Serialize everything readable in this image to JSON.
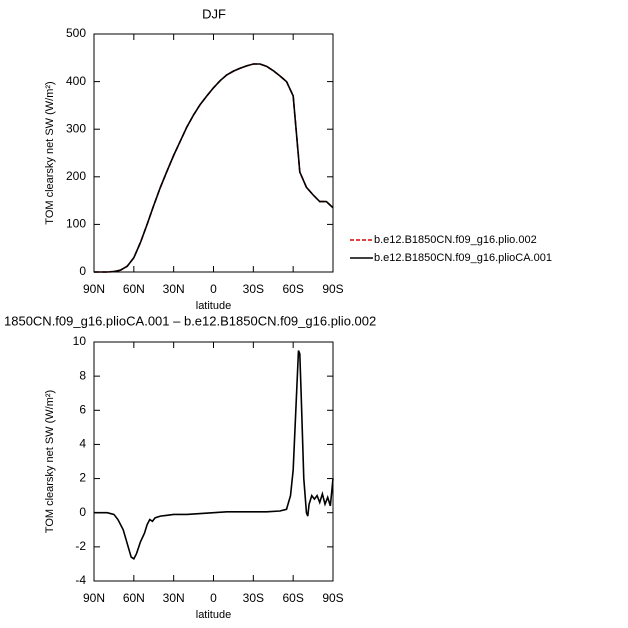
{
  "chart_data": [
    {
      "type": "line",
      "title": "DJF",
      "xlabel": "latitude",
      "ylabel": "TOM clearsky net SW (W/m²)",
      "x": [
        90,
        85,
        80,
        75,
        70,
        65,
        60,
        55,
        50,
        45,
        40,
        35,
        30,
        25,
        20,
        15,
        10,
        5,
        0,
        -5,
        -10,
        -15,
        -20,
        -25,
        -30,
        -35,
        -40,
        -45,
        -50,
        -55,
        -60,
        -65,
        -70,
        -75,
        -80,
        -85,
        -90
      ],
      "series": [
        {
          "name": "b.e12.B1850CN.f09_g16.plio.002",
          "color": "#e00000",
          "line_style": "dashed",
          "values": [
            0,
            0,
            0,
            1,
            4,
            12,
            30,
            62,
            100,
            140,
            178,
            212,
            245,
            275,
            305,
            330,
            352,
            370,
            387,
            402,
            414,
            422,
            428,
            433,
            437,
            437,
            432,
            423,
            412,
            400,
            370,
            210,
            178,
            162,
            148,
            148,
            135
          ]
        },
        {
          "name": "b.e12.B1850CN.f09_g16.plioCA.001",
          "color": "#000000",
          "line_style": "solid",
          "values": [
            0,
            0,
            0,
            1,
            4,
            12,
            30,
            62,
            100,
            140,
            178,
            212,
            245,
            275,
            305,
            330,
            352,
            370,
            387,
            402,
            414,
            422,
            428,
            433,
            437,
            437,
            432,
            423,
            412,
            400,
            370,
            210,
            178,
            162,
            148,
            148,
            135
          ]
        }
      ],
      "xlim": [
        90,
        -90
      ],
      "xticks": [
        {
          "value": 90,
          "label": "90N"
        },
        {
          "value": 60,
          "label": "60N"
        },
        {
          "value": 30,
          "label": "30N"
        },
        {
          "value": 0,
          "label": "0"
        },
        {
          "value": -30,
          "label": "30S"
        },
        {
          "value": -60,
          "label": "60S"
        },
        {
          "value": -90,
          "label": "90S"
        }
      ],
      "ylim": [
        0,
        500
      ],
      "yticks": [
        0,
        100,
        200,
        300,
        400,
        500
      ],
      "legend": "right"
    },
    {
      "type": "line",
      "title": "1850CN.f09_g16.plioCA.001 – b.e12.B1850CN.f09_g16.plio.002",
      "xlabel": "latitude",
      "ylabel": "TOM clearsky net SW (W/m²)",
      "x": [
        90,
        80,
        75,
        72,
        68,
        65,
        62,
        60,
        58,
        55,
        52,
        50,
        48,
        46,
        44,
        40,
        35,
        30,
        20,
        10,
        0,
        -10,
        -20,
        -30,
        -40,
        -50,
        -55,
        -58,
        -60,
        -62,
        -64,
        -65,
        -66,
        -68,
        -70,
        -71,
        -72,
        -74,
        -76,
        -78,
        -80,
        -82,
        -84,
        -86,
        -88,
        -90
      ],
      "series": [
        {
          "color": "#000000",
          "line_style": "solid",
          "values": [
            0,
            0,
            -0.1,
            -0.4,
            -1.0,
            -1.8,
            -2.6,
            -2.7,
            -2.4,
            -1.7,
            -1.2,
            -0.7,
            -0.4,
            -0.5,
            -0.3,
            -0.2,
            -0.15,
            -0.1,
            -0.1,
            -0.05,
            0,
            0.05,
            0.05,
            0.05,
            0.05,
            0.1,
            0.2,
            1.0,
            2.5,
            6,
            9.5,
            9.3,
            7,
            2,
            0,
            -0.2,
            0.5,
            1.0,
            0.8,
            1.0,
            0.6,
            1.1,
            0.5,
            0.9,
            0.4,
            2.0
          ]
        }
      ],
      "xlim": [
        90,
        -90
      ],
      "xticks": [
        {
          "value": 90,
          "label": "90N"
        },
        {
          "value": 60,
          "label": "60N"
        },
        {
          "value": 30,
          "label": "30N"
        },
        {
          "value": 0,
          "label": "0"
        },
        {
          "value": -30,
          "label": "30S"
        },
        {
          "value": -60,
          "label": "60S"
        },
        {
          "value": -90,
          "label": "90S"
        }
      ],
      "ylim": [
        -4,
        10
      ],
      "yticks": [
        -4,
        -2,
        0,
        2,
        4,
        6,
        8,
        10
      ]
    }
  ]
}
